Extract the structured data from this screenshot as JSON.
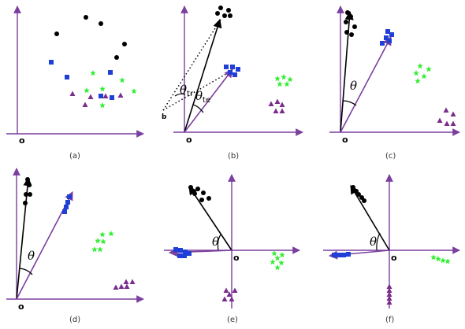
{
  "colors": {
    "axis": "#7b3fa0",
    "black_class": "#000000",
    "blue_class": "#1f3fd6",
    "green_class": "#33ee33",
    "purple_class": "#7a2d8c",
    "dotted": "#000000"
  },
  "marker_shapes": {
    "black_class": "circle",
    "blue_class": "square",
    "green_class": "star",
    "purple_class": "triangle"
  },
  "origin_label": "o",
  "point_b_label": "b",
  "angle_symbol": "θ",
  "angle_tr_sub": "tr",
  "angle_te_sub": "te",
  "panels": [
    {
      "id": "a",
      "caption": "(a)",
      "shows_vectors": false,
      "shows_angle": false
    },
    {
      "id": "b",
      "caption": "(b)",
      "shows_vectors": true,
      "shows_angle": true,
      "shows_dotted_to_b": true
    },
    {
      "id": "c",
      "caption": "(c)",
      "shows_vectors": true,
      "shows_angle": true
    },
    {
      "id": "d",
      "caption": "(d)",
      "shows_vectors": true,
      "shows_angle": true
    },
    {
      "id": "e",
      "caption": "(e)",
      "shows_vectors": true,
      "shows_angle": true,
      "centered_axes": true
    },
    {
      "id": "f",
      "caption": "(f)",
      "shows_vectors": true,
      "shows_angle": true,
      "centered_axes": true
    }
  ]
}
